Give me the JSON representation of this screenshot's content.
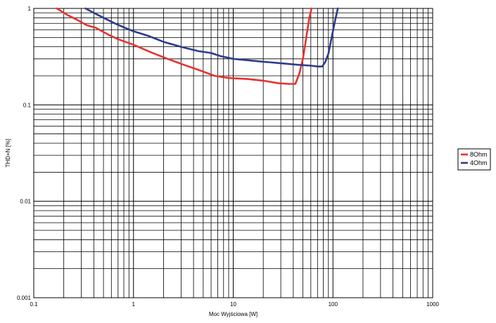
{
  "chart_data": {
    "type": "line",
    "title": "",
    "xlabel": "Moc Wyjściowa [W]",
    "ylabel": "THD+N [%]",
    "xscale": "log",
    "yscale": "log",
    "xlim": [
      0.1,
      1000
    ],
    "ylim": [
      0.001,
      1
    ],
    "grid": true,
    "legend_position": "right",
    "x_tick_labels": [
      "0.1",
      "1",
      "10",
      "100",
      "1000"
    ],
    "y_tick_labels": [
      "1",
      "0.1",
      "0.01",
      "0.001"
    ],
    "series": [
      {
        "name": "8Ohm",
        "color": "#e8312f",
        "x": [
          0.17,
          0.22,
          0.28,
          0.34,
          0.42,
          0.55,
          0.7,
          1.0,
          1.5,
          2.2,
          3.2,
          4.8,
          6.5,
          9,
          14,
          20,
          28,
          36,
          42,
          46,
          50,
          54,
          58,
          61
        ],
        "y": [
          1.0,
          0.85,
          0.75,
          0.67,
          0.63,
          0.54,
          0.48,
          0.42,
          0.35,
          0.3,
          0.26,
          0.225,
          0.2,
          0.19,
          0.185,
          0.178,
          0.168,
          0.165,
          0.165,
          0.21,
          0.3,
          0.5,
          0.8,
          1.0
        ]
      },
      {
        "name": "4Ohm",
        "color": "#2e3a8c",
        "x": [
          0.33,
          0.4,
          0.5,
          0.65,
          0.85,
          1.0,
          1.4,
          2.0,
          3.0,
          4.5,
          6.0,
          7.5,
          10,
          14,
          20,
          30,
          45,
          60,
          70,
          78,
          84,
          90,
          97,
          105,
          112
        ],
        "y": [
          1.0,
          0.9,
          0.8,
          0.7,
          0.62,
          0.58,
          0.52,
          0.45,
          0.4,
          0.36,
          0.345,
          0.32,
          0.3,
          0.29,
          0.28,
          0.27,
          0.26,
          0.255,
          0.25,
          0.25,
          0.28,
          0.34,
          0.5,
          0.75,
          1.0
        ]
      }
    ]
  }
}
